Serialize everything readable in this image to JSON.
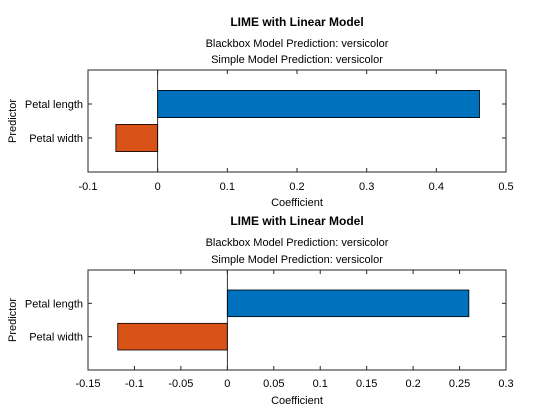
{
  "chart_data": [
    {
      "type": "bar",
      "orientation": "horizontal",
      "title": "LIME with Linear Model",
      "subtitle_lines": [
        "Blackbox Model Prediction: versicolor",
        "Simple Model Prediction: versicolor"
      ],
      "xlabel": "Coefficient",
      "ylabel": "Predictor",
      "categories": [
        "Petal width",
        "Petal length"
      ],
      "values": [
        -0.06,
        0.462
      ],
      "bar_colors": [
        "#D95319",
        "#0072BD"
      ],
      "xlim": [
        -0.1,
        0.5
      ],
      "xticks": [
        -0.1,
        0,
        0.1,
        0.2,
        0.3,
        0.4,
        0.5
      ],
      "xtick_labels": [
        "-0.1",
        "0",
        "0.1",
        "0.2",
        "0.3",
        "0.4",
        "0.5"
      ],
      "zero_line": true,
      "grid": false
    },
    {
      "type": "bar",
      "orientation": "horizontal",
      "title": "LIME with Linear Model",
      "subtitle_lines": [
        "Blackbox Model Prediction: versicolor",
        "Simple Model Prediction: versicolor"
      ],
      "xlabel": "Coefficient",
      "ylabel": "Predictor",
      "categories": [
        "Petal width",
        "Petal length"
      ],
      "values": [
        -0.118,
        0.26
      ],
      "bar_colors": [
        "#D95319",
        "#0072BD"
      ],
      "xlim": [
        -0.15,
        0.3
      ],
      "xticks": [
        -0.15,
        -0.1,
        -0.05,
        0,
        0.05,
        0.1,
        0.15,
        0.2,
        0.25,
        0.3
      ],
      "xtick_labels": [
        "-0.15",
        "-0.1",
        "-0.05",
        "0",
        "0.05",
        "0.1",
        "0.15",
        "0.2",
        "0.25",
        "0.3"
      ],
      "zero_line": true,
      "grid": false
    }
  ]
}
